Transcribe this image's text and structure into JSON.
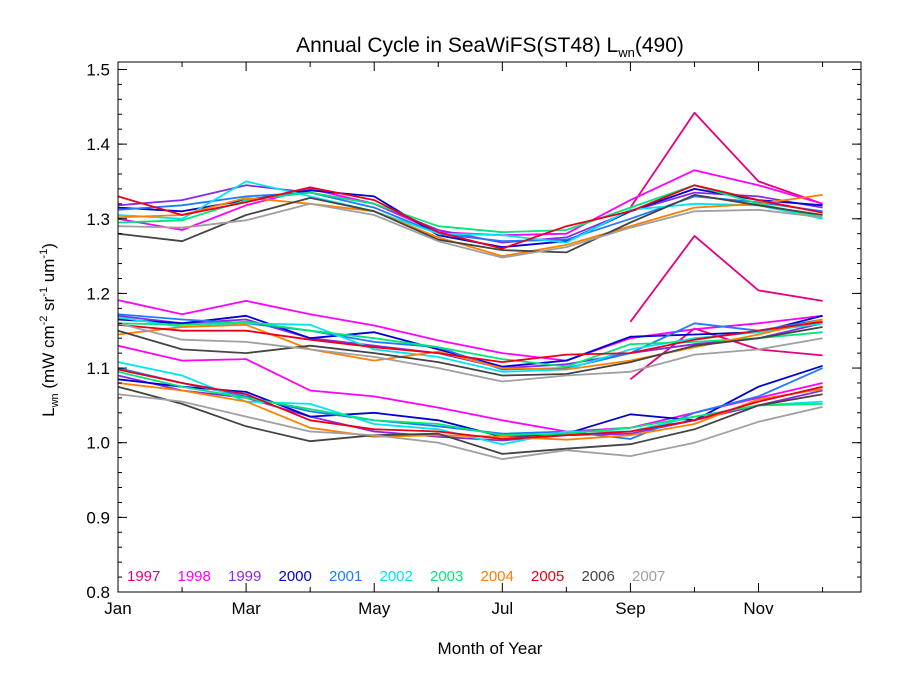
{
  "chart_data": {
    "type": "line",
    "title": {
      "main": "Annual Cycle in SeaWiFS(ST48) L",
      "sub": "wn",
      "tail": "(490)"
    },
    "xlabel": "Month of Year",
    "ylabel": {
      "pre": "L",
      "sub": "wn",
      "unit_a": " (mW cm",
      "sup_a": "-2",
      "unit_b": " sr",
      "sup_b": "-1",
      "unit_c": " um",
      "sup_c": "-1",
      "close": ")"
    },
    "xlim": [
      1,
      12.6
    ],
    "ylim": [
      0.8,
      1.51
    ],
    "xticks": [
      {
        "value": 1,
        "label": "Jan"
      },
      {
        "value": 3,
        "label": "Mar"
      },
      {
        "value": 5,
        "label": "May"
      },
      {
        "value": 7,
        "label": "Jul"
      },
      {
        "value": 9,
        "label": "Sep"
      },
      {
        "value": 11,
        "label": "Nov"
      }
    ],
    "yticks": [
      {
        "value": 0.8,
        "label": "0.8"
      },
      {
        "value": 0.9,
        "label": "0.9"
      },
      {
        "value": 1.0,
        "label": "1.0"
      },
      {
        "value": 1.1,
        "label": "1.1"
      },
      {
        "value": 1.2,
        "label": "1.2"
      },
      {
        "value": 1.3,
        "label": "1.3"
      },
      {
        "value": 1.4,
        "label": "1.4"
      },
      {
        "value": 1.5,
        "label": "1.5"
      }
    ],
    "legend_placement": "bottom-left",
    "x": [
      1,
      2,
      3,
      4,
      5,
      6,
      7,
      8,
      9,
      10,
      11,
      12
    ],
    "series": [
      {
        "name": "1997",
        "color": "#e6007e",
        "groups": {
          "high": [
            null,
            null,
            null,
            null,
            null,
            null,
            null,
            null,
            1.315,
            1.442,
            1.35,
            1.32
          ],
          "mid": [
            null,
            null,
            null,
            null,
            null,
            null,
            null,
            null,
            1.162,
            1.277,
            1.204,
            1.19
          ],
          "low": [
            null,
            null,
            null,
            null,
            null,
            null,
            null,
            null,
            1.085,
            1.153,
            1.125,
            1.117
          ]
        }
      },
      {
        "name": "1998",
        "color": "#ff00ff",
        "groups": {
          "high": [
            1.3,
            1.285,
            1.318,
            1.34,
            1.32,
            1.282,
            1.278,
            1.28,
            1.325,
            1.365,
            1.345,
            1.32
          ],
          "mid": [
            1.191,
            1.172,
            1.19,
            1.172,
            1.157,
            1.137,
            1.12,
            1.11,
            1.14,
            1.152,
            1.16,
            1.17
          ],
          "low": [
            1.13,
            1.11,
            1.112,
            1.07,
            1.062,
            1.047,
            1.03,
            1.015,
            1.02,
            1.04,
            1.06,
            1.08
          ]
        }
      },
      {
        "name": "1999",
        "color": "#8a2be2",
        "groups": {
          "high": [
            1.318,
            1.325,
            1.345,
            1.335,
            1.32,
            1.285,
            1.268,
            1.275,
            1.31,
            1.335,
            1.33,
            1.315
          ],
          "mid": [
            1.17,
            1.16,
            1.165,
            1.14,
            1.13,
            1.12,
            1.1,
            1.105,
            1.12,
            1.132,
            1.14,
            1.16
          ],
          "low": [
            1.09,
            1.07,
            1.06,
            1.035,
            1.015,
            1.008,
            1.003,
            1.01,
            1.012,
            1.03,
            1.05,
            1.07
          ]
        }
      },
      {
        "name": "2000",
        "color": "#0000d0",
        "groups": {
          "high": [
            1.315,
            1.31,
            1.325,
            1.338,
            1.33,
            1.278,
            1.262,
            1.27,
            1.31,
            1.34,
            1.325,
            1.318
          ],
          "mid": [
            1.165,
            1.16,
            1.17,
            1.14,
            1.148,
            1.125,
            1.102,
            1.11,
            1.142,
            1.145,
            1.148,
            1.17
          ],
          "low": [
            1.085,
            1.075,
            1.068,
            1.035,
            1.04,
            1.03,
            1.008,
            1.012,
            1.038,
            1.03,
            1.075,
            1.103
          ]
        }
      },
      {
        "name": "2001",
        "color": "#1e7bff",
        "groups": {
          "high": [
            1.312,
            1.318,
            1.33,
            1.335,
            1.315,
            1.28,
            1.27,
            1.272,
            1.3,
            1.33,
            1.322,
            1.31
          ],
          "mid": [
            1.172,
            1.165,
            1.16,
            1.15,
            1.135,
            1.128,
            1.098,
            1.1,
            1.12,
            1.16,
            1.15,
            1.165
          ],
          "low": [
            1.1,
            1.08,
            1.062,
            1.042,
            1.03,
            1.022,
            1.012,
            1.015,
            1.005,
            1.04,
            1.062,
            1.1
          ]
        }
      },
      {
        "name": "2002",
        "color": "#00e5ee",
        "groups": {
          "high": [
            1.305,
            1.3,
            1.35,
            1.33,
            1.31,
            1.28,
            1.278,
            1.268,
            1.312,
            1.32,
            1.318,
            1.3
          ],
          "mid": [
            1.168,
            1.155,
            1.16,
            1.158,
            1.125,
            1.115,
            1.095,
            1.098,
            1.125,
            1.14,
            1.148,
            1.16
          ],
          "low": [
            1.108,
            1.09,
            1.055,
            1.052,
            1.025,
            1.018,
            0.998,
            1.015,
            1.015,
            1.035,
            1.05,
            1.055
          ]
        }
      },
      {
        "name": "2003",
        "color": "#00e676",
        "groups": {
          "high": [
            1.295,
            1.298,
            1.325,
            1.335,
            1.32,
            1.29,
            1.282,
            1.285,
            1.315,
            1.345,
            1.32,
            1.302
          ],
          "mid": [
            1.16,
            1.158,
            1.162,
            1.15,
            1.14,
            1.128,
            1.112,
            1.102,
            1.132,
            1.135,
            1.14,
            1.148
          ],
          "low": [
            1.095,
            1.075,
            1.06,
            1.045,
            1.03,
            1.025,
            1.01,
            1.012,
            1.02,
            1.035,
            1.05,
            1.052
          ]
        }
      },
      {
        "name": "2004",
        "color": "#ff7f00",
        "groups": {
          "high": [
            1.302,
            1.305,
            1.328,
            1.32,
            1.31,
            1.275,
            1.25,
            1.265,
            1.29,
            1.315,
            1.32,
            1.332
          ],
          "mid": [
            1.145,
            1.155,
            1.158,
            1.125,
            1.11,
            1.122,
            1.1,
            1.098,
            1.11,
            1.128,
            1.145,
            1.165
          ],
          "low": [
            1.08,
            1.07,
            1.055,
            1.02,
            1.008,
            1.01,
            1.008,
            1.004,
            1.01,
            1.025,
            1.058,
            1.072
          ]
        }
      },
      {
        "name": "2005",
        "color": "#e8001a",
        "groups": {
          "high": [
            1.33,
            1.305,
            1.322,
            1.342,
            1.325,
            1.282,
            1.26,
            1.29,
            1.31,
            1.345,
            1.325,
            1.308
          ],
          "mid": [
            1.158,
            1.15,
            1.15,
            1.138,
            1.128,
            1.12,
            1.108,
            1.118,
            1.12,
            1.138,
            1.15,
            1.162
          ],
          "low": [
            1.098,
            1.08,
            1.065,
            1.03,
            1.018,
            1.015,
            1.005,
            1.01,
            1.015,
            1.03,
            1.055,
            1.075
          ]
        }
      },
      {
        "name": "2006",
        "color": "#444444",
        "groups": {
          "high": [
            1.28,
            1.27,
            1.305,
            1.328,
            1.31,
            1.272,
            1.258,
            1.255,
            1.295,
            1.332,
            1.318,
            1.305
          ],
          "mid": [
            1.15,
            1.125,
            1.12,
            1.13,
            1.12,
            1.108,
            1.09,
            1.092,
            1.108,
            1.13,
            1.14,
            1.155
          ],
          "low": [
            1.075,
            1.052,
            1.022,
            1.002,
            1.01,
            1.012,
            0.985,
            0.992,
            0.998,
            1.018,
            1.05,
            1.065
          ]
        }
      },
      {
        "name": "2007",
        "color": "#a0a0a0",
        "groups": {
          "high": [
            1.29,
            1.288,
            1.298,
            1.32,
            1.305,
            1.27,
            1.248,
            1.262,
            1.288,
            1.31,
            1.312,
            1.302
          ],
          "mid": [
            1.16,
            1.138,
            1.135,
            1.125,
            1.115,
            1.1,
            1.082,
            1.09,
            1.095,
            1.118,
            1.125,
            1.14
          ],
          "low": [
            1.065,
            1.055,
            1.035,
            1.015,
            1.01,
            1.0,
            0.978,
            0.99,
            0.982,
            1.0,
            1.028,
            1.048
          ]
        }
      }
    ]
  }
}
